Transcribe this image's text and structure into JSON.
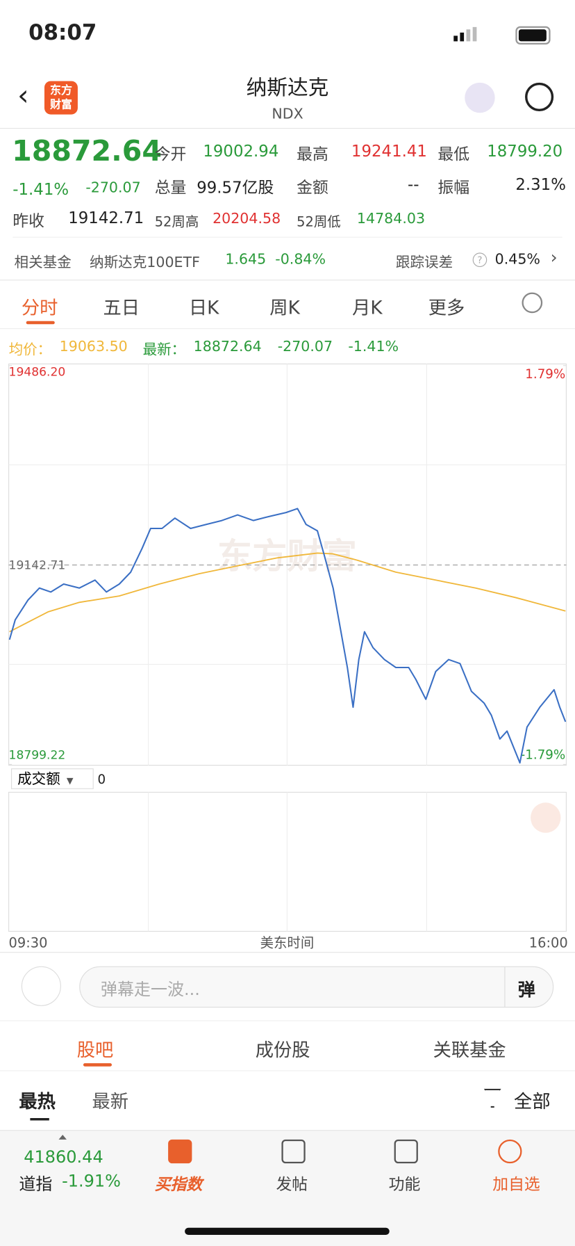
{
  "status": {
    "time": "08:07"
  },
  "header": {
    "title": "纳斯达克",
    "subtitle": "NDX",
    "logo_top": "东方",
    "logo_bottom": "财富"
  },
  "quote": {
    "price": "18872.64",
    "change_pct": "-1.41%",
    "change": "-270.07",
    "fields": [
      {
        "label": "今开",
        "value": "19002.94"
      },
      {
        "label": "最高",
        "value": "19241.41"
      },
      {
        "label": "最低",
        "value": "18799.20"
      },
      {
        "label": "总量",
        "value": "99.57亿股"
      },
      {
        "label": "金额",
        "value": "--"
      },
      {
        "label": "振幅",
        "value": "2.31%"
      },
      {
        "label": "昨收",
        "value": "19142.71"
      },
      {
        "label": "52周高",
        "value": "20204.58"
      },
      {
        "label": "52周低",
        "value": "14784.03"
      }
    ]
  },
  "fund": {
    "label": "相关基金",
    "name": "纳斯达克100ETF",
    "price": "1.645",
    "change": "-0.84%",
    "tracking_label": "跟踪误差",
    "tracking": "0.45%"
  },
  "tabs": [
    "分时",
    "五日",
    "日K",
    "周K",
    "月K",
    "更多"
  ],
  "legend": {
    "avg": "19063.50",
    "latest": "18872.64",
    "change": "-270.07",
    "change_pct": "-1.41%"
  },
  "chart_data": {
    "type": "line",
    "watermark": "东方财富",
    "xlabel": "美东时间",
    "xlim": [
      0,
      390
    ],
    "xticks": [
      {
        "value": 0,
        "label": "09:30"
      },
      {
        "value": 390,
        "label": "16:00"
      }
    ],
    "ylim": [
      18799.22,
      19486.2
    ],
    "yticks": [
      {
        "value": 18799.22,
        "label": "18799.22"
      },
      {
        "value": 19142.71,
        "label": "19142.71"
      },
      {
        "value": 19486.2,
        "label": "19486.20"
      }
    ],
    "y2lim": [
      -1.79,
      1.79
    ],
    "y2ticks": [
      {
        "value": -1.79,
        "label": "-1.79%"
      },
      {
        "value": 1.79,
        "label": "1.79%"
      }
    ],
    "series": [
      {
        "name": "均价：",
        "color": "#f0b73a",
        "x": [
          0,
          27,
          49,
          77,
          105,
          133,
          160,
          188,
          216,
          227,
          244,
          271,
          299,
          327,
          355,
          390
        ],
        "values": [
          19027.8,
          19062.0,
          19078.4,
          19089.3,
          19109.9,
          19127.7,
          19141.3,
          19155.0,
          19163.2,
          19161.9,
          19150.9,
          19130.4,
          19116.7,
          19103.0,
          19086.6,
          19063.5
        ]
      },
      {
        "name": "最新：",
        "color": "#3a6fc4",
        "x": [
          0,
          4,
          13,
          21,
          29,
          38,
          49,
          60,
          68,
          77,
          85,
          93,
          99,
          107,
          116,
          127,
          138,
          149,
          160,
          171,
          182,
          194,
          202,
          208,
          216,
          221,
          227,
          233,
          237,
          241,
          245,
          249,
          255,
          263,
          271,
          280,
          285,
          292,
          299,
          308,
          316,
          324,
          333,
          338,
          344,
          349,
          358,
          363,
          372,
          382,
          386,
          390
        ],
        "values": [
          19014.1,
          19048.3,
          19082.5,
          19103.0,
          19096.2,
          19109.9,
          19103.0,
          19116.7,
          19096.2,
          19109.9,
          19130.4,
          19171.4,
          19205.7,
          19205.7,
          19223.4,
          19205.7,
          19212.5,
          19219.3,
          19228.9,
          19219.3,
          19226.2,
          19233.0,
          19239.9,
          19212.5,
          19201.6,
          19157.8,
          19103.0,
          19020.9,
          18966.2,
          18897.7,
          18979.9,
          19027.8,
          19000.4,
          18979.9,
          18966.2,
          18966.2,
          18945.6,
          18911.4,
          18959.3,
          18979.9,
          18973.0,
          18925.1,
          18904.6,
          18884.1,
          18843.0,
          18856.7,
          18801.9,
          18863.5,
          18897.7,
          18927.9,
          18897.7,
          18872.64
        ]
      }
    ]
  },
  "volume": {
    "label": "成交额",
    "value": "0"
  },
  "comment": {
    "placeholder": "弹幕走一波...",
    "button": "弹"
  },
  "sections": [
    "股吧",
    "成份股",
    "关联基金"
  ],
  "subtabs": {
    "hot": "最热",
    "new": "最新",
    "filter": "全部"
  },
  "bottom": {
    "index_value": "41860.44",
    "index_name": "道指",
    "index_change": "-1.91%",
    "nav": [
      "买指数",
      "发帖",
      "功能",
      "加自选"
    ]
  }
}
